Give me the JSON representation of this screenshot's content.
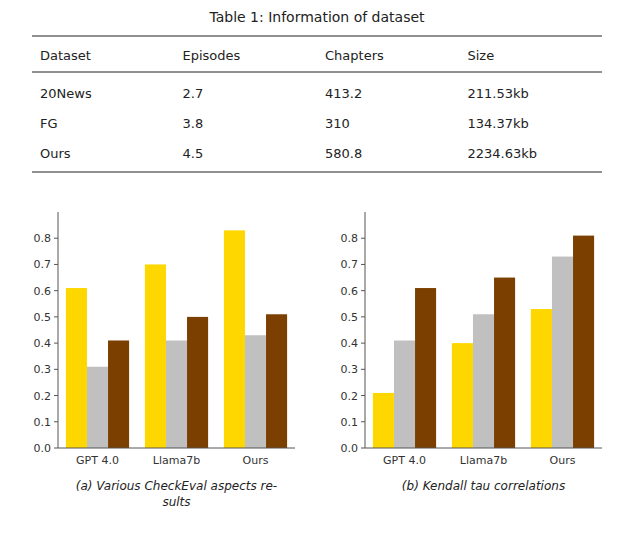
{
  "chart_data": [
    {
      "type": "table",
      "title": "Table 1: Information of dataset",
      "columns": [
        "Dataset",
        "Episodes",
        "Chapters",
        "Size"
      ],
      "rows": [
        [
          "20News",
          "2.7",
          "413.2",
          "211.53kb"
        ],
        [
          "FG",
          "3.8",
          "310",
          "134.37kb"
        ],
        [
          "Ours",
          "4.5",
          "580.8",
          "2234.63kb"
        ]
      ]
    },
    {
      "type": "bar",
      "title": [
        "(a) Various CheckEval aspects re-",
        "sults"
      ],
      "categories": [
        "GPT 4.0",
        "Llama7b",
        "Ours"
      ],
      "series": [
        {
          "color": "#FFD700",
          "values": [
            0.61,
            0.7,
            0.83
          ]
        },
        {
          "color": "#C0C0C0",
          "values": [
            0.31,
            0.41,
            0.43
          ]
        },
        {
          "color": "#7B3F00",
          "values": [
            0.41,
            0.5,
            0.51
          ]
        }
      ],
      "ylim": [
        0.0,
        0.9
      ],
      "yticks": [
        {
          "value": 0,
          "label": "0.0"
        },
        0.1,
        0.2,
        0.3,
        0.4,
        0.5,
        0.6,
        0.7,
        0.8
      ],
      "grid": false
    },
    {
      "type": "bar",
      "title": "(b) Kendall tau correlations",
      "categories": [
        "GPT 4.0",
        "Llama7b",
        "Ours"
      ],
      "series": [
        {
          "color": "#FFD700",
          "values": [
            0.21,
            0.4,
            0.53
          ]
        },
        {
          "color": "#C0C0C0",
          "values": [
            0.41,
            0.51,
            0.73
          ]
        },
        {
          "color": "#7B3F00",
          "values": [
            0.61,
            0.65,
            0.81
          ]
        }
      ],
      "ylim": [
        0.0,
        0.9
      ],
      "yticks": [
        {
          "value": 0,
          "label": "0.0"
        },
        0.1,
        0.2,
        0.3,
        0.4,
        0.5,
        0.6,
        0.7,
        0.8
      ],
      "grid": false
    }
  ]
}
